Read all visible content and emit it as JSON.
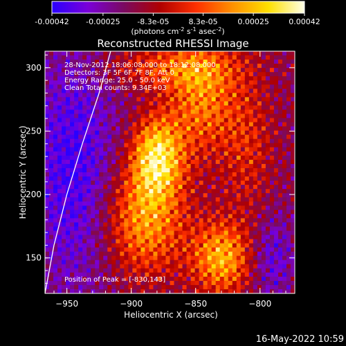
{
  "colorbar": {
    "tick_labels": [
      "-0.00042",
      "-0.00025",
      "-8.3e-05",
      "8.3e-05",
      "0.00025",
      "0.00042"
    ],
    "tick_values": [
      -0.00042,
      -0.00025,
      -8.3e-05,
      8.3e-05,
      0.00025,
      0.00042
    ],
    "range": [
      -0.00042,
      0.00042
    ],
    "units": {
      "prefix": "(photons cm",
      "exp1": "-2",
      "mid1": " s",
      "exp2": "-1",
      "mid2": " asec",
      "exp3": "-2",
      "suffix": ")"
    },
    "gradient_colors": [
      "#2a00ff",
      "#7a00d8",
      "#7a0a60",
      "#b00000",
      "#ff3000",
      "#ff9000",
      "#ffe000",
      "#ffffe8"
    ]
  },
  "chart_data": {
    "type": "heatmap",
    "title": "Reconstructed RHESSI Image",
    "xlabel": "Heliocentric X (arcsec)",
    "ylabel": "Heliocentric Y (arcsec)",
    "xlim": [
      -967,
      -773
    ],
    "ylim": [
      122,
      313
    ],
    "x_ticks": [
      -950,
      -900,
      -850,
      -800
    ],
    "y_ticks": [
      150,
      200,
      250,
      300
    ],
    "x_tick_labels": [
      "−950",
      "−900",
      "−850",
      "−800"
    ],
    "y_tick_labels": [
      "150",
      "200",
      "250",
      "300"
    ],
    "annotations": [
      "28-Nov-2012 18:06:08.000 to 18:12:08.000",
      "Detectors: 3F 5F 6F 7F 8F, Att 0",
      "Energy Range: 25.0 - 50.0 keV",
      "Clean     Total counts: 9.34E+03"
    ],
    "peak_label": "Position of Peak = [-830,143]",
    "peak_position": [
      -830,
      143
    ],
    "limb_curve": [
      [
        -967,
        122
      ],
      [
        -960,
        160
      ],
      [
        -950,
        200
      ],
      [
        -938,
        240
      ],
      [
        -925,
        280
      ],
      [
        -916,
        313
      ]
    ],
    "grid": false
  },
  "footer": {
    "timestamp": "16-May-2022 10:59"
  }
}
